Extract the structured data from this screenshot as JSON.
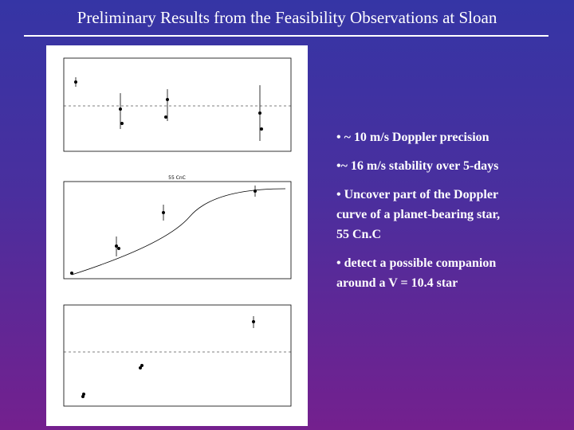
{
  "header": {
    "title": "Preliminary Results from the Feasibility Observations at Sloan"
  },
  "figure": {
    "panels": [
      {
        "label": "55 CnC"
      }
    ]
  },
  "bullets": [
    {
      "lines": [
        "• ~ 10 m/s Doppler precision"
      ]
    },
    {
      "lines": [
        "•~ 16 m/s stability over 5-days"
      ]
    },
    {
      "lines": [
        "• Uncover part of the Doppler",
        "curve of a planet-bearing star,",
        "55 Cn.C"
      ]
    },
    {
      "lines": [
        "• detect a possible companion",
        "around a V = 10.4 star"
      ]
    }
  ]
}
